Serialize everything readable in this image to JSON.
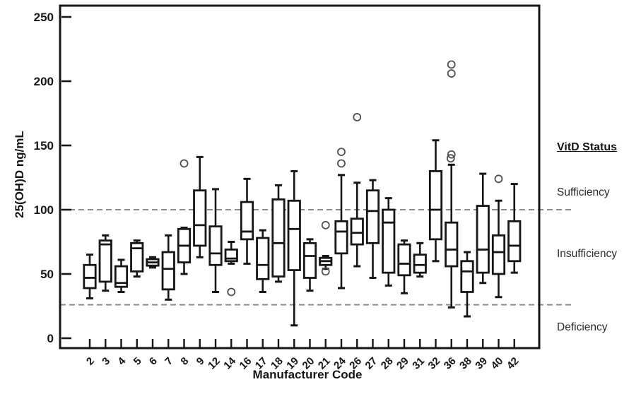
{
  "figure": {
    "x_axis_title": "Manufacturer Code",
    "y_axis_title": "25(OH)D ng/mL",
    "right_panel": {
      "title": "VitD Status",
      "zones": {
        "sufficiency": "Sufficiency",
        "insufficiency": "Insufficiency",
        "deficiency": "Deficiency"
      }
    }
  },
  "chart_data": {
    "type": "boxplot",
    "title": "",
    "xlabel": "Manufacturer Code",
    "ylabel": "25(OH)D ng/mL",
    "ylim": [
      0,
      250
    ],
    "yticks": [
      0,
      50,
      100,
      150,
      200,
      250
    ],
    "grid": false,
    "reference_lines": [
      {
        "value": 100,
        "style": "dashed",
        "meaning": "sufficiency threshold"
      },
      {
        "value": 26,
        "style": "dashed",
        "meaning": "deficiency threshold"
      }
    ],
    "categories": [
      "2",
      "3",
      "4",
      "5",
      "6",
      "7",
      "8",
      "9",
      "12",
      "14",
      "16",
      "17",
      "18",
      "19",
      "20",
      "21",
      "24",
      "26",
      "27",
      "28",
      "29",
      "31",
      "32",
      "36",
      "38",
      "39",
      "40",
      "42"
    ],
    "boxes": [
      {
        "code": "2",
        "min": 31,
        "q1": 39,
        "median": 47,
        "q3": 57,
        "max": 65,
        "outliers": []
      },
      {
        "code": "3",
        "min": 37,
        "q1": 44,
        "median": 73,
        "q3": 76,
        "max": 80,
        "outliers": []
      },
      {
        "code": "4",
        "min": 36,
        "q1": 40,
        "median": 43,
        "q3": 56,
        "max": 61,
        "outliers": []
      },
      {
        "code": "5",
        "min": 48,
        "q1": 52,
        "median": 70,
        "q3": 74,
        "max": 76,
        "outliers": []
      },
      {
        "code": "6",
        "min": 55,
        "q1": 56.5,
        "median": 59,
        "q3": 61.5,
        "max": 63,
        "outliers": []
      },
      {
        "code": "7",
        "min": 30,
        "q1": 38,
        "median": 54,
        "q3": 67,
        "max": 80,
        "outliers": []
      },
      {
        "code": "8",
        "min": 50,
        "q1": 59,
        "median": 72,
        "q3": 85,
        "max": 86,
        "outliers": [
          136
        ]
      },
      {
        "code": "9",
        "min": 63,
        "q1": 72,
        "median": 88,
        "q3": 115,
        "max": 141,
        "outliers": []
      },
      {
        "code": "12",
        "min": 36,
        "q1": 57,
        "median": 66,
        "q3": 87,
        "max": 116,
        "outliers": []
      },
      {
        "code": "14",
        "min": 58,
        "q1": 60,
        "median": 62,
        "q3": 69,
        "max": 75,
        "outliers": [
          36
        ]
      },
      {
        "code": "16",
        "min": 58,
        "q1": 77,
        "median": 83,
        "q3": 106,
        "max": 124,
        "outliers": []
      },
      {
        "code": "17",
        "min": 36,
        "q1": 46,
        "median": 57,
        "q3": 78,
        "max": 84,
        "outliers": []
      },
      {
        "code": "18",
        "min": 44,
        "q1": 48,
        "median": 74,
        "q3": 108,
        "max": 119,
        "outliers": []
      },
      {
        "code": "19",
        "min": 10,
        "q1": 53,
        "median": 85,
        "q3": 107,
        "max": 130,
        "outliers": []
      },
      {
        "code": "20",
        "min": 37,
        "q1": 47,
        "median": 64,
        "q3": 74,
        "max": 77,
        "outliers": []
      },
      {
        "code": "21",
        "min": 54,
        "q1": 57,
        "median": 60,
        "q3": 62.5,
        "max": 64,
        "outliers": [
          88,
          52
        ]
      },
      {
        "code": "24",
        "min": 39,
        "q1": 66,
        "median": 83,
        "q3": 91,
        "max": 127,
        "outliers": [
          145,
          136
        ]
      },
      {
        "code": "26",
        "min": 56,
        "q1": 73,
        "median": 82,
        "q3": 93,
        "max": 121,
        "outliers": [
          172
        ]
      },
      {
        "code": "27",
        "min": 47,
        "q1": 74,
        "median": 99,
        "q3": 115,
        "max": 123,
        "outliers": []
      },
      {
        "code": "28",
        "min": 41,
        "q1": 51,
        "median": 90,
        "q3": 100,
        "max": 109,
        "outliers": []
      },
      {
        "code": "29",
        "min": 35,
        "q1": 49,
        "median": 58,
        "q3": 73,
        "max": 76,
        "outliers": []
      },
      {
        "code": "31",
        "min": 48,
        "q1": 51,
        "median": 57,
        "q3": 65,
        "max": 74,
        "outliers": []
      },
      {
        "code": "32",
        "min": 60,
        "q1": 77,
        "median": 100,
        "q3": 130,
        "max": 154,
        "outliers": []
      },
      {
        "code": "36",
        "min": 24,
        "q1": 56,
        "median": 69,
        "q3": 90,
        "max": 135,
        "outliers": [
          213,
          206,
          143,
          140
        ]
      },
      {
        "code": "38",
        "min": 17,
        "q1": 36,
        "median": 52,
        "q3": 60,
        "max": 67,
        "outliers": []
      },
      {
        "code": "39",
        "min": 43,
        "q1": 51,
        "median": 69,
        "q3": 103,
        "max": 128,
        "outliers": []
      },
      {
        "code": "40",
        "min": 32,
        "q1": 50,
        "median": 67,
        "q3": 80,
        "max": 107,
        "outliers": [
          124
        ]
      },
      {
        "code": "42",
        "min": 51,
        "q1": 60,
        "median": 72,
        "q3": 91,
        "max": 120,
        "outliers": []
      }
    ],
    "legend_position": "none",
    "colors": {
      "line": "#161616",
      "dashed_reference": "#8c8c8c",
      "outlier_stroke": "#4f4f4f",
      "background": "#ffffff"
    }
  }
}
